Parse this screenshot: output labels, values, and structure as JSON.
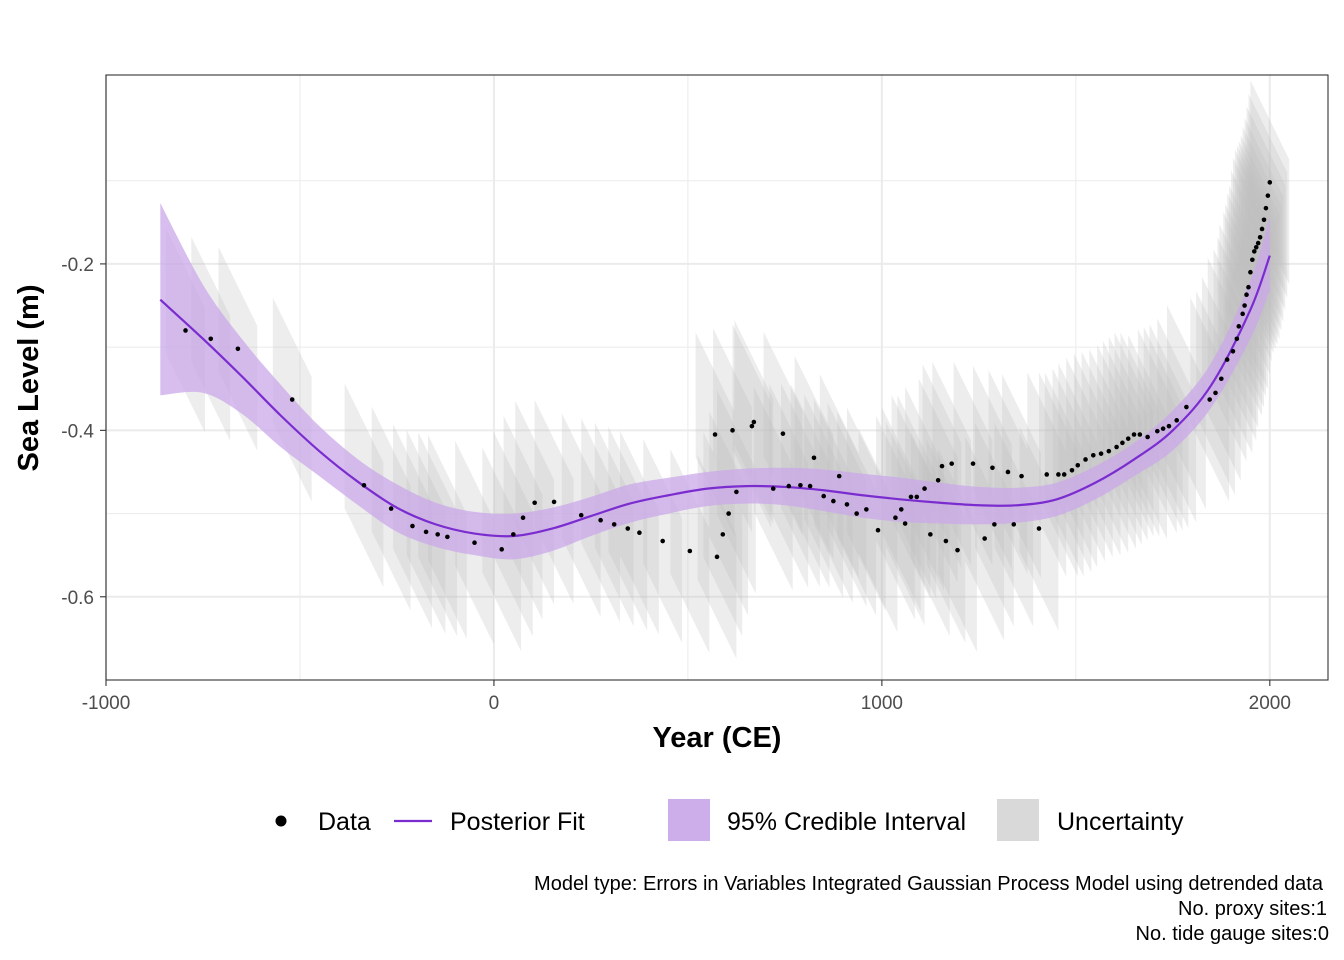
{
  "chart_data": {
    "type": "line",
    "title": "",
    "xlabel": "Year (CE)",
    "ylabel": "Sea Level (m)",
    "xlim": [
      -1000,
      2150
    ],
    "ylim": [
      -0.7,
      0.027
    ],
    "x_ticks": [
      -1000,
      0,
      1000,
      2000
    ],
    "x_tick_labels": [
      "-1000",
      "0",
      "1000",
      "2000"
    ],
    "y_ticks": [
      -0.6,
      -0.4,
      -0.2
    ],
    "y_tick_labels": [
      "-0.6",
      "-0.4",
      "-0.2"
    ],
    "grid": true,
    "legend_position": "bottom",
    "legend": [
      {
        "key": "data",
        "label": "Data",
        "symbol": "point",
        "color": "#000000"
      },
      {
        "key": "fit",
        "label": "Posterior Fit",
        "symbol": "line",
        "color": "#7B2CCF"
      },
      {
        "key": "ci",
        "label": "95% Credible Interval",
        "symbol": "fill",
        "color": "#CDAEEB"
      },
      {
        "key": "unc",
        "label": "Uncertainty",
        "symbol": "fill",
        "color": "#D9D9D9"
      }
    ],
    "colors": {
      "fit": "#7B2CCF",
      "credible_interval": "#C9A8EA",
      "uncertainty": "#BDBDBD",
      "data": "#000000",
      "grid": "#EBEBEB",
      "panel_border": "#333333"
    },
    "posterior_fit": {
      "x": [
        -860,
        -750,
        -650,
        -550,
        -450,
        -350,
        -250,
        -150,
        -50,
        50,
        150,
        250,
        350,
        450,
        550,
        650,
        750,
        850,
        950,
        1050,
        1150,
        1250,
        1350,
        1450,
        1550,
        1650,
        1750,
        1850,
        1950,
        2000
      ],
      "y": [
        -0.243,
        -0.29,
        -0.335,
        -0.382,
        -0.425,
        -0.462,
        -0.493,
        -0.513,
        -0.524,
        -0.527,
        -0.518,
        -0.503,
        -0.488,
        -0.478,
        -0.47,
        -0.467,
        -0.468,
        -0.472,
        -0.478,
        -0.483,
        -0.487,
        -0.49,
        -0.49,
        -0.483,
        -0.463,
        -0.435,
        -0.4,
        -0.345,
        -0.255,
        -0.19
      ],
      "upper": [
        -0.127,
        -0.225,
        -0.29,
        -0.345,
        -0.395,
        -0.435,
        -0.465,
        -0.487,
        -0.498,
        -0.5,
        -0.493,
        -0.48,
        -0.465,
        -0.457,
        -0.45,
        -0.446,
        -0.445,
        -0.447,
        -0.452,
        -0.457,
        -0.463,
        -0.468,
        -0.469,
        -0.463,
        -0.443,
        -0.415,
        -0.376,
        -0.318,
        -0.22,
        -0.143
      ],
      "lower": [
        -0.358,
        -0.355,
        -0.38,
        -0.42,
        -0.455,
        -0.49,
        -0.522,
        -0.54,
        -0.55,
        -0.555,
        -0.545,
        -0.527,
        -0.511,
        -0.5,
        -0.491,
        -0.488,
        -0.49,
        -0.497,
        -0.505,
        -0.51,
        -0.512,
        -0.513,
        -0.511,
        -0.503,
        -0.483,
        -0.455,
        -0.424,
        -0.372,
        -0.29,
        -0.232
      ]
    },
    "data_points": {
      "x": [
        -795,
        -730,
        -660,
        -520,
        -335,
        -265,
        -210,
        -175,
        -145,
        -120,
        -50,
        20,
        50,
        75,
        105,
        155,
        225,
        275,
        310,
        345,
        375,
        435,
        505,
        570,
        575,
        590,
        605,
        615,
        625,
        665,
        670,
        720,
        745,
        760,
        790,
        815,
        825,
        850,
        875,
        890,
        910,
        935,
        960,
        990,
        1035,
        1050,
        1060,
        1075,
        1090,
        1110,
        1125,
        1145,
        1155,
        1165,
        1180,
        1195,
        1235,
        1265,
        1285,
        1290,
        1325,
        1340,
        1360,
        1405,
        1425,
        1455,
        1470,
        1490,
        1505,
        1525,
        1545,
        1565,
        1585,
        1605,
        1620,
        1635,
        1650,
        1665,
        1685,
        1710,
        1725,
        1740,
        1760,
        1785,
        1845,
        1860,
        1875,
        1890,
        1905,
        1915,
        1920,
        1930,
        1935,
        1940,
        1945,
        1950,
        1955,
        1960,
        1965,
        1970,
        1975,
        1980,
        1985,
        1990,
        1995,
        2000
      ],
      "y": [
        -0.28,
        -0.29,
        -0.302,
        -0.363,
        -0.466,
        -0.494,
        -0.515,
        -0.522,
        -0.525,
        -0.528,
        -0.535,
        -0.543,
        -0.525,
        -0.505,
        -0.487,
        -0.486,
        -0.502,
        -0.508,
        -0.513,
        -0.518,
        -0.523,
        -0.533,
        -0.545,
        -0.405,
        -0.552,
        -0.525,
        -0.5,
        -0.4,
        -0.474,
        -0.395,
        -0.39,
        -0.47,
        -0.404,
        -0.467,
        -0.466,
        -0.467,
        -0.433,
        -0.479,
        -0.485,
        -0.455,
        -0.489,
        -0.5,
        -0.495,
        -0.52,
        -0.505,
        -0.495,
        -0.512,
        -0.48,
        -0.48,
        -0.47,
        -0.525,
        -0.46,
        -0.443,
        -0.533,
        -0.44,
        -0.544,
        -0.44,
        -0.53,
        -0.445,
        -0.513,
        -0.45,
        -0.513,
        -0.455,
        -0.518,
        -0.453,
        -0.453,
        -0.453,
        -0.448,
        -0.442,
        -0.435,
        -0.43,
        -0.428,
        -0.425,
        -0.42,
        -0.415,
        -0.41,
        -0.405,
        -0.405,
        -0.408,
        -0.401,
        -0.398,
        -0.395,
        -0.388,
        -0.372,
        -0.363,
        -0.355,
        -0.338,
        -0.315,
        -0.305,
        -0.29,
        -0.275,
        -0.26,
        -0.25,
        -0.237,
        -0.228,
        -0.21,
        -0.195,
        -0.185,
        -0.18,
        -0.175,
        -0.168,
        -0.158,
        -0.147,
        -0.133,
        -0.118,
        -0.102
      ]
    },
    "uncertainty_box": {
      "half_width_years": 50,
      "half_height_m": 0.075
    },
    "caption_lines": [
      "Model type: Errors in Variables Integrated Gaussian Process Model using detrended data",
      "No. proxy sites:1",
      "No. tide gauge sites:0"
    ]
  }
}
